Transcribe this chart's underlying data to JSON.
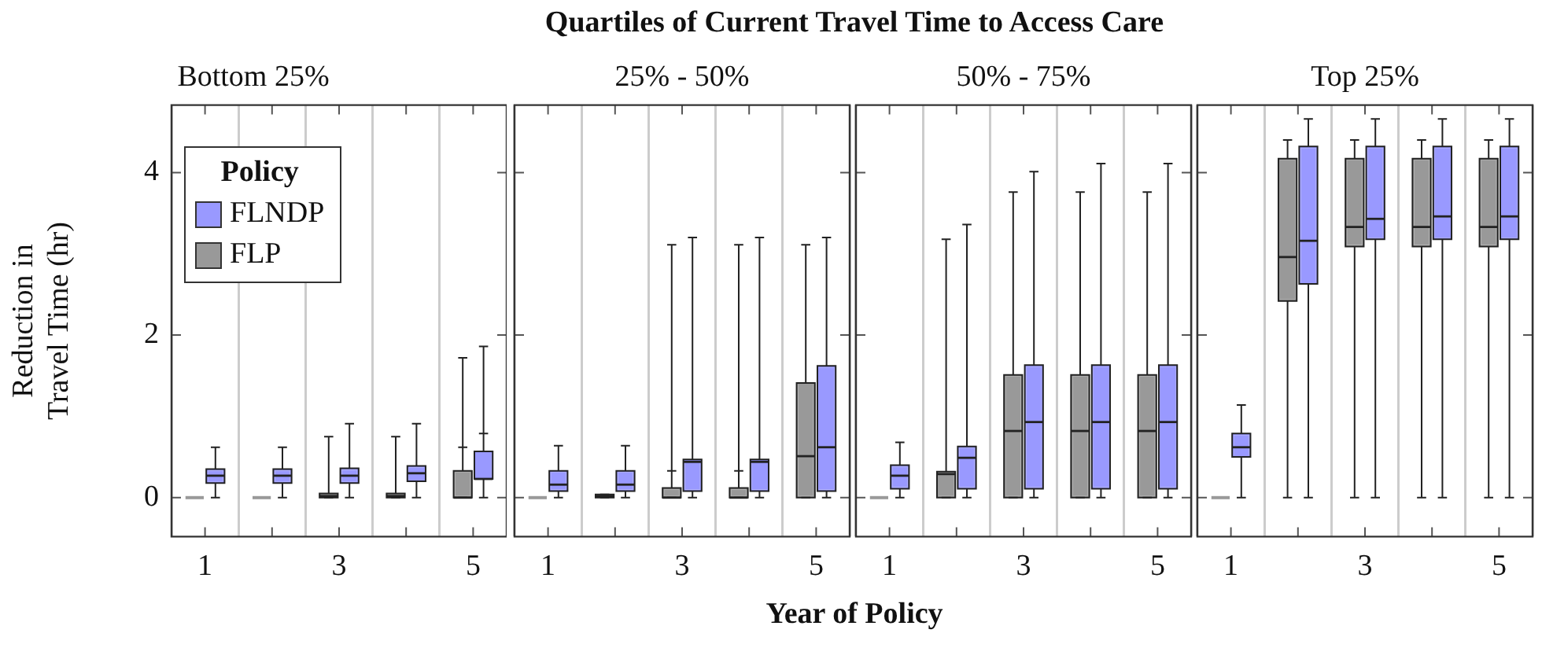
{
  "chart_data": [
    {
      "type": "box",
      "title": "Bottom 25%",
      "annotations": [
        "Quartiles of Current Travel Time to Access Care",
        "Year of Policy"
      ],
      "ylabel": "Reduction in Travel Time (hr)",
      "legend": "top left",
      "legend_title": "Policy",
      "categories": [
        "1",
        null,
        "3",
        null,
        "5"
      ],
      "ylim": [
        -0.48,
        4.83
      ],
      "yticks": [
        0,
        2,
        4
      ],
      "grid": "x",
      "series": [
        {
          "name": "FLP",
          "color": "#999999",
          "boxes": [
            {
              "low": 0,
              "q1": 0,
              "median": 0,
              "q3": 0,
              "high": 0
            },
            {
              "low": 0,
              "q1": 0,
              "median": 0,
              "q3": 0,
              "high": 0
            },
            {
              "low": 0,
              "q1": 0,
              "median": 0.02,
              "q3": 0.05,
              "high": 0.75
            },
            {
              "low": 0,
              "q1": 0,
              "median": 0.02,
              "q3": 0.05,
              "high": 0.75
            },
            {
              "low": 0,
              "q1": 0,
              "median": 0,
              "q3": 0.33,
              "high": 1.72,
              "mean": 0.62
            }
          ]
        },
        {
          "name": "FLNDP",
          "color": "#9999ff",
          "boxes": [
            {
              "low": 0,
              "q1": 0.18,
              "median": 0.27,
              "q3": 0.35,
              "high": 0.62
            },
            {
              "low": 0,
              "q1": 0.18,
              "median": 0.27,
              "q3": 0.35,
              "high": 0.62
            },
            {
              "low": 0,
              "q1": 0.18,
              "median": 0.27,
              "q3": 0.36,
              "high": 0.91
            },
            {
              "low": 0,
              "q1": 0.2,
              "median": 0.3,
              "q3": 0.39,
              "high": 0.91
            },
            {
              "low": 0,
              "q1": 0.23,
              "median": 0.23,
              "q3": 0.57,
              "high": 1.86,
              "mean": 0.79
            }
          ]
        }
      ]
    },
    {
      "type": "box",
      "title": "25% - 50%",
      "categories": [
        "1",
        null,
        "3",
        null,
        "5"
      ],
      "ylim": [
        -0.48,
        4.83
      ],
      "yticks": [
        0,
        2,
        4
      ],
      "grid": "x",
      "tick_labels": "x",
      "series": [
        {
          "color": "#999999",
          "boxes": [
            {
              "low": 0,
              "q1": 0,
              "median": 0,
              "q3": 0,
              "high": 0
            },
            {
              "low": 0,
              "q1": 0,
              "median": 0.02,
              "q3": 0.04,
              "high": 0.04
            },
            {
              "low": 0,
              "q1": 0,
              "median": 0,
              "q3": 0.12,
              "high": 3.11,
              "mean": 0.33
            },
            {
              "low": 0,
              "q1": 0,
              "median": 0,
              "q3": 0.12,
              "high": 3.11,
              "mean": 0.33
            },
            {
              "low": 0,
              "q1": 0,
              "median": 0.51,
              "q3": 1.41,
              "high": 3.11
            }
          ]
        },
        {
          "color": "#9999ff",
          "boxes": [
            {
              "low": 0,
              "q1": 0.08,
              "median": 0.16,
              "q3": 0.33,
              "high": 0.64
            },
            {
              "low": 0,
              "q1": 0.08,
              "median": 0.16,
              "q3": 0.33,
              "high": 0.64
            },
            {
              "low": 0,
              "q1": 0.08,
              "median": 0.44,
              "q3": 0.47,
              "high": 3.2
            },
            {
              "low": 0,
              "q1": 0.08,
              "median": 0.44,
              "q3": 0.47,
              "high": 3.2
            },
            {
              "low": 0,
              "q1": 0.08,
              "median": 0.62,
              "q3": 1.62,
              "high": 3.2
            }
          ]
        }
      ]
    },
    {
      "type": "box",
      "title": "50% - 75%",
      "categories": [
        "1",
        null,
        "3",
        null,
        "5"
      ],
      "ylim": [
        -0.48,
        4.83
      ],
      "yticks": [
        0,
        2,
        4
      ],
      "grid": "x",
      "tick_labels": "x",
      "series": [
        {
          "color": "#999999",
          "boxes": [
            {
              "low": 0,
              "q1": 0,
              "median": 0,
              "q3": 0,
              "high": 0
            },
            {
              "low": 0,
              "q1": 0,
              "median": 0.29,
              "q3": 0.32,
              "high": 3.18
            },
            {
              "low": 0,
              "q1": 0,
              "median": 0.82,
              "q3": 1.51,
              "high": 3.76
            },
            {
              "low": 0,
              "q1": 0,
              "median": 0.82,
              "q3": 1.51,
              "high": 3.76
            },
            {
              "low": 0,
              "q1": 0,
              "median": 0.82,
              "q3": 1.51,
              "high": 3.76
            }
          ]
        },
        {
          "color": "#9999ff",
          "boxes": [
            {
              "low": 0,
              "q1": 0.11,
              "median": 0.27,
              "q3": 0.4,
              "high": 0.68
            },
            {
              "low": 0,
              "q1": 0.11,
              "median": 0.49,
              "q3": 0.63,
              "high": 3.36
            },
            {
              "low": 0,
              "q1": 0.11,
              "median": 0.93,
              "q3": 1.63,
              "high": 4.01
            },
            {
              "low": 0,
              "q1": 0.11,
              "median": 0.93,
              "q3": 1.63,
              "high": 4.11
            },
            {
              "low": 0,
              "q1": 0.11,
              "median": 0.93,
              "q3": 1.63,
              "high": 4.11
            }
          ]
        }
      ]
    },
    {
      "type": "box",
      "title": "Top 25%",
      "categories": [
        "1",
        null,
        "3",
        null,
        "5"
      ],
      "ylim": [
        -0.48,
        4.83
      ],
      "yticks": [
        0,
        2,
        4
      ],
      "grid": "x",
      "tick_labels": "x",
      "series": [
        {
          "color": "#999999",
          "boxes": [
            {
              "low": 0,
              "q1": 0,
              "median": 0,
              "q3": 0,
              "high": 0
            },
            {
              "low": 0,
              "q1": 2.42,
              "median": 2.96,
              "q3": 4.17,
              "high": 4.4
            },
            {
              "low": 0,
              "q1": 3.09,
              "median": 3.33,
              "q3": 4.17,
              "high": 4.4
            },
            {
              "low": 0,
              "q1": 3.09,
              "median": 3.33,
              "q3": 4.17,
              "high": 4.4
            },
            {
              "low": 0,
              "q1": 3.09,
              "median": 3.33,
              "q3": 4.17,
              "high": 4.4
            }
          ]
        },
        {
          "color": "#9999ff",
          "boxes": [
            {
              "low": 0,
              "q1": 0.5,
              "median": 0.62,
              "q3": 0.79,
              "high": 1.14
            },
            {
              "low": 0,
              "q1": 2.63,
              "median": 3.16,
              "q3": 4.32,
              "high": 4.66
            },
            {
              "low": 0,
              "q1": 3.18,
              "median": 3.43,
              "q3": 4.32,
              "high": 4.66
            },
            {
              "low": 0,
              "q1": 3.18,
              "median": 3.46,
              "q3": 4.32,
              "high": 4.66
            },
            {
              "low": 0,
              "q1": 3.18,
              "median": 3.46,
              "q3": 4.32,
              "high": 4.66
            }
          ]
        }
      ]
    }
  ]
}
